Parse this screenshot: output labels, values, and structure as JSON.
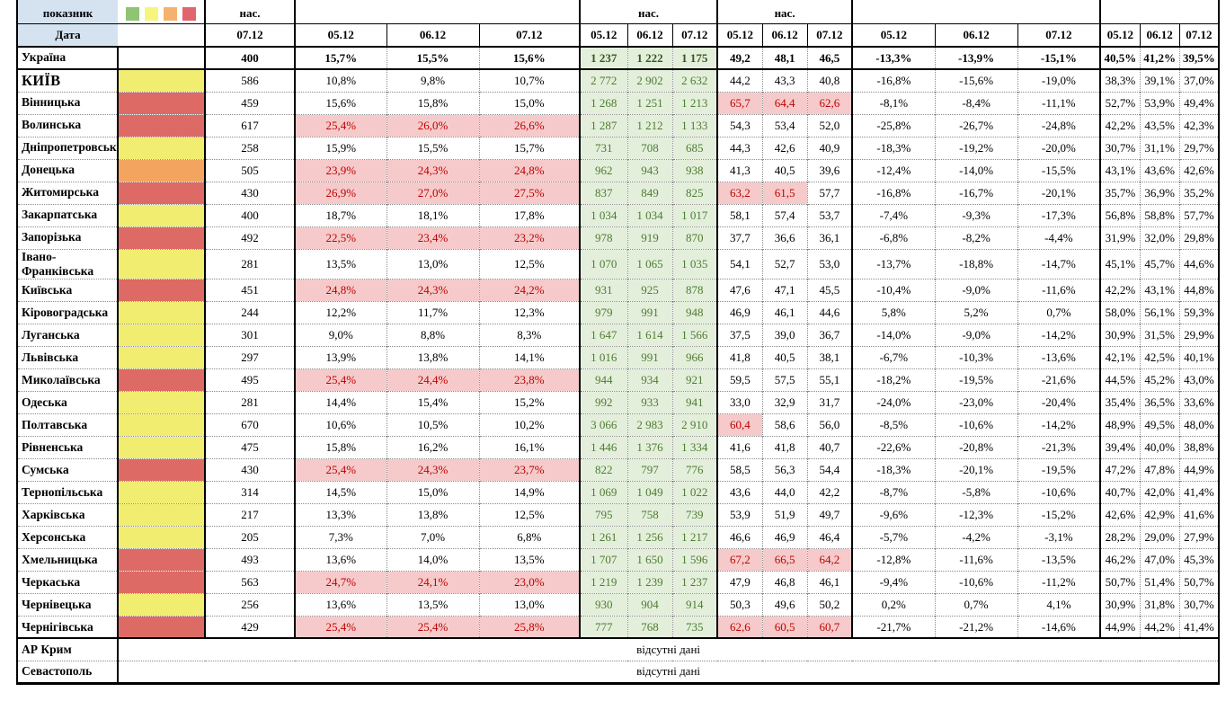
{
  "header": {
    "indicator_label": "показник",
    "date_label": "Дата",
    "nas_label": "нас.",
    "single_date": "07.12",
    "dates": [
      "05.12",
      "06.12",
      "07.12"
    ],
    "legend_colors": [
      "#8FC474",
      "#F6F57E",
      "#F5B26E",
      "#E0656E"
    ]
  },
  "colors": {
    "status": {
      "yellow": "#F1ED71",
      "orange": "#F3A55F",
      "red": "#DE6A65"
    },
    "header_blue": "#D5E3F1",
    "green_cell_bg": "#E3EFDB",
    "green_cell_text": "#4E7B31",
    "alert_bg": "#F6CACA",
    "alert_text": "#BF0000"
  },
  "summary_row": {
    "name": "Україна",
    "status": null,
    "nas": "400",
    "pct1": [
      "15,7%",
      "15,5%",
      "15,6%"
    ],
    "counts": [
      "1 237",
      "1 222",
      "1 175"
    ],
    "vals": [
      "49,2",
      "48,1",
      "46,5"
    ],
    "pct2": [
      "-13,3%",
      "-13,9%",
      "-15,1%"
    ],
    "pct3": [
      "40,5%",
      "41,2%",
      "39,5%"
    ]
  },
  "rows": [
    {
      "name": "КИЇВ",
      "emphasis": true,
      "status": "yellow",
      "nas": "586",
      "pct1": [
        "10,8%",
        "9,8%",
        "10,7%"
      ],
      "counts": [
        "2 772",
        "2 902",
        "2 632"
      ],
      "vals": [
        "44,2",
        "43,3",
        "40,8"
      ],
      "pct2": [
        "-16,8%",
        "-15,6%",
        "-19,0%"
      ],
      "pct3": [
        "38,3%",
        "39,1%",
        "37,0%"
      ]
    },
    {
      "name": "Вінницька",
      "status": "red",
      "nas": "459",
      "pct1": [
        "15,6%",
        "15,8%",
        "15,0%"
      ],
      "counts": [
        "1 268",
        "1 251",
        "1 213"
      ],
      "vals": [
        "65,7",
        "64,4",
        "62,6"
      ],
      "vals_alert": [
        1,
        1,
        1
      ],
      "pct2": [
        "-8,1%",
        "-8,4%",
        "-11,1%"
      ],
      "pct3": [
        "52,7%",
        "53,9%",
        "49,4%"
      ]
    },
    {
      "name": "Волинська",
      "status": "red",
      "nas": "617",
      "pct1": [
        "25,4%",
        "26,0%",
        "26,6%"
      ],
      "pct1_alert": true,
      "counts": [
        "1 287",
        "1 212",
        "1 133"
      ],
      "vals": [
        "54,3",
        "53,4",
        "52,0"
      ],
      "pct2": [
        "-25,8%",
        "-26,7%",
        "-24,8%"
      ],
      "pct3": [
        "42,2%",
        "43,5%",
        "42,3%"
      ]
    },
    {
      "name": "Дніпропетровська",
      "status": "yellow",
      "nas": "258",
      "pct1": [
        "15,9%",
        "15,5%",
        "15,7%"
      ],
      "counts": [
        "731",
        "708",
        "685"
      ],
      "vals": [
        "44,3",
        "42,6",
        "40,9"
      ],
      "pct2": [
        "-18,3%",
        "-19,2%",
        "-20,0%"
      ],
      "pct3": [
        "30,7%",
        "31,1%",
        "29,7%"
      ]
    },
    {
      "name": "Донецька",
      "status": "orange",
      "nas": "505",
      "pct1": [
        "23,9%",
        "24,3%",
        "24,8%"
      ],
      "pct1_alert": true,
      "counts": [
        "962",
        "943",
        "938"
      ],
      "vals": [
        "41,3",
        "40,5",
        "39,6"
      ],
      "pct2": [
        "-12,4%",
        "-14,0%",
        "-15,5%"
      ],
      "pct3": [
        "43,1%",
        "43,6%",
        "42,6%"
      ]
    },
    {
      "name": "Житомирська",
      "status": "red",
      "nas": "430",
      "pct1": [
        "26,9%",
        "27,0%",
        "27,5%"
      ],
      "pct1_alert": true,
      "counts": [
        "837",
        "849",
        "825"
      ],
      "vals": [
        "63,2",
        "61,5",
        "57,7"
      ],
      "vals_alert": [
        1,
        1,
        0
      ],
      "pct2": [
        "-16,8%",
        "-16,7%",
        "-20,1%"
      ],
      "pct3": [
        "35,7%",
        "36,9%",
        "35,2%"
      ]
    },
    {
      "name": "Закарпатська",
      "status": "yellow",
      "nas": "400",
      "pct1": [
        "18,7%",
        "18,1%",
        "17,8%"
      ],
      "counts": [
        "1 034",
        "1 034",
        "1 017"
      ],
      "vals": [
        "58,1",
        "57,4",
        "53,7"
      ],
      "pct2": [
        "-7,4%",
        "-9,3%",
        "-17,3%"
      ],
      "pct3": [
        "56,8%",
        "58,8%",
        "57,7%"
      ]
    },
    {
      "name": "Запорізька",
      "status": "red",
      "nas": "492",
      "pct1": [
        "22,5%",
        "23,4%",
        "23,2%"
      ],
      "pct1_alert": true,
      "counts": [
        "978",
        "919",
        "870"
      ],
      "vals": [
        "37,7",
        "36,6",
        "36,1"
      ],
      "pct2": [
        "-6,8%",
        "-8,2%",
        "-4,4%"
      ],
      "pct3": [
        "31,9%",
        "32,0%",
        "29,8%"
      ]
    },
    {
      "name": "Івано-Франківська",
      "status": "yellow",
      "nas": "281",
      "pct1": [
        "13,5%",
        "13,0%",
        "12,5%"
      ],
      "counts": [
        "1 070",
        "1 065",
        "1 035"
      ],
      "vals": [
        "54,1",
        "52,7",
        "53,0"
      ],
      "pct2": [
        "-13,7%",
        "-18,8%",
        "-14,7%"
      ],
      "pct3": [
        "45,1%",
        "45,7%",
        "44,6%"
      ]
    },
    {
      "name": "Київська",
      "status": "red",
      "nas": "451",
      "pct1": [
        "24,8%",
        "24,3%",
        "24,2%"
      ],
      "pct1_alert": true,
      "counts": [
        "931",
        "925",
        "878"
      ],
      "vals": [
        "47,6",
        "47,1",
        "45,5"
      ],
      "pct2": [
        "-10,4%",
        "-9,0%",
        "-11,6%"
      ],
      "pct3": [
        "42,2%",
        "43,1%",
        "44,8%"
      ]
    },
    {
      "name": "Кіровоградська",
      "status": "yellow",
      "nas": "244",
      "pct1": [
        "12,2%",
        "11,7%",
        "12,3%"
      ],
      "counts": [
        "979",
        "991",
        "948"
      ],
      "vals": [
        "46,9",
        "46,1",
        "44,6"
      ],
      "pct2": [
        "5,8%",
        "5,2%",
        "0,7%"
      ],
      "pct3": [
        "58,0%",
        "56,1%",
        "59,3%"
      ]
    },
    {
      "name": "Луганська",
      "status": "yellow",
      "nas": "301",
      "pct1": [
        "9,0%",
        "8,8%",
        "8,3%"
      ],
      "counts": [
        "1 647",
        "1 614",
        "1 566"
      ],
      "vals": [
        "37,5",
        "39,0",
        "36,7"
      ],
      "pct2": [
        "-14,0%",
        "-9,0%",
        "-14,2%"
      ],
      "pct3": [
        "30,9%",
        "31,5%",
        "29,9%"
      ]
    },
    {
      "name": "Львівська",
      "status": "yellow",
      "nas": "297",
      "pct1": [
        "13,9%",
        "13,8%",
        "14,1%"
      ],
      "counts": [
        "1 016",
        "991",
        "966"
      ],
      "vals": [
        "41,8",
        "40,5",
        "38,1"
      ],
      "pct2": [
        "-6,7%",
        "-10,3%",
        "-13,6%"
      ],
      "pct3": [
        "42,1%",
        "42,5%",
        "40,1%"
      ]
    },
    {
      "name": "Миколаївська",
      "status": "red",
      "nas": "495",
      "pct1": [
        "25,4%",
        "24,4%",
        "23,8%"
      ],
      "pct1_alert": true,
      "counts": [
        "944",
        "934",
        "921"
      ],
      "vals": [
        "59,5",
        "57,5",
        "55,1"
      ],
      "pct2": [
        "-18,2%",
        "-19,5%",
        "-21,6%"
      ],
      "pct3": [
        "44,5%",
        "45,2%",
        "43,0%"
      ]
    },
    {
      "name": "Одеська",
      "status": "yellow",
      "nas": "281",
      "pct1": [
        "14,4%",
        "15,4%",
        "15,2%"
      ],
      "counts": [
        "992",
        "933",
        "941"
      ],
      "vals": [
        "33,0",
        "32,9",
        "31,7"
      ],
      "pct2": [
        "-24,0%",
        "-23,0%",
        "-20,4%"
      ],
      "pct3": [
        "35,4%",
        "36,5%",
        "33,6%"
      ]
    },
    {
      "name": "Полтавська",
      "status": "yellow",
      "nas": "670",
      "pct1": [
        "10,6%",
        "10,5%",
        "10,2%"
      ],
      "counts": [
        "3 066",
        "2 983",
        "2 910"
      ],
      "vals": [
        "60,4",
        "58,6",
        "56,0"
      ],
      "vals_alert": [
        1,
        0,
        0
      ],
      "pct2": [
        "-8,5%",
        "-10,6%",
        "-14,2%"
      ],
      "pct3": [
        "48,9%",
        "49,5%",
        "48,0%"
      ]
    },
    {
      "name": "Рівненська",
      "status": "yellow",
      "nas": "475",
      "pct1": [
        "15,8%",
        "16,2%",
        "16,1%"
      ],
      "counts": [
        "1 446",
        "1 376",
        "1 334"
      ],
      "vals": [
        "41,6",
        "41,8",
        "40,7"
      ],
      "pct2": [
        "-22,6%",
        "-20,8%",
        "-21,3%"
      ],
      "pct3": [
        "39,4%",
        "40,0%",
        "38,8%"
      ]
    },
    {
      "name": "Сумська",
      "status": "red",
      "nas": "430",
      "pct1": [
        "25,4%",
        "24,3%",
        "23,7%"
      ],
      "pct1_alert": true,
      "counts": [
        "822",
        "797",
        "776"
      ],
      "vals": [
        "58,5",
        "56,3",
        "54,4"
      ],
      "pct2": [
        "-18,3%",
        "-20,1%",
        "-19,5%"
      ],
      "pct3": [
        "47,2%",
        "47,8%",
        "44,9%"
      ]
    },
    {
      "name": "Тернопільська",
      "status": "yellow",
      "nas": "314",
      "pct1": [
        "14,5%",
        "15,0%",
        "14,9%"
      ],
      "counts": [
        "1 069",
        "1 049",
        "1 022"
      ],
      "vals": [
        "43,6",
        "44,0",
        "42,2"
      ],
      "pct2": [
        "-8,7%",
        "-5,8%",
        "-10,6%"
      ],
      "pct3": [
        "40,7%",
        "42,0%",
        "41,4%"
      ]
    },
    {
      "name": "Харківська",
      "status": "yellow",
      "nas": "217",
      "pct1": [
        "13,3%",
        "13,8%",
        "12,5%"
      ],
      "counts": [
        "795",
        "758",
        "739"
      ],
      "vals": [
        "53,9",
        "51,9",
        "49,7"
      ],
      "pct2": [
        "-9,6%",
        "-12,3%",
        "-15,2%"
      ],
      "pct3": [
        "42,6%",
        "42,9%",
        "41,6%"
      ]
    },
    {
      "name": "Херсонська",
      "status": "yellow",
      "nas": "205",
      "pct1": [
        "7,3%",
        "7,0%",
        "6,8%"
      ],
      "counts": [
        "1 261",
        "1 256",
        "1 217"
      ],
      "vals": [
        "46,6",
        "46,9",
        "46,4"
      ],
      "pct2": [
        "-5,7%",
        "-4,2%",
        "-3,1%"
      ],
      "pct3": [
        "28,2%",
        "29,0%",
        "27,9%"
      ]
    },
    {
      "name": "Хмельницька",
      "status": "red",
      "nas": "493",
      "pct1": [
        "13,6%",
        "14,0%",
        "13,5%"
      ],
      "counts": [
        "1 707",
        "1 650",
        "1 596"
      ],
      "vals": [
        "67,2",
        "66,5",
        "64,2"
      ],
      "vals_alert": [
        1,
        1,
        1
      ],
      "pct2": [
        "-12,8%",
        "-11,6%",
        "-13,5%"
      ],
      "pct3": [
        "46,2%",
        "47,0%",
        "45,3%"
      ]
    },
    {
      "name": "Черкаська",
      "status": "red",
      "nas": "563",
      "pct1": [
        "24,7%",
        "24,1%",
        "23,0%"
      ],
      "pct1_alert": true,
      "counts": [
        "1 219",
        "1 239",
        "1 237"
      ],
      "vals": [
        "47,9",
        "46,8",
        "46,1"
      ],
      "pct2": [
        "-9,4%",
        "-10,6%",
        "-11,2%"
      ],
      "pct3": [
        "50,7%",
        "51,4%",
        "50,7%"
      ]
    },
    {
      "name": "Чернівецька",
      "status": "yellow",
      "nas": "256",
      "pct1": [
        "13,6%",
        "13,5%",
        "13,0%"
      ],
      "counts": [
        "930",
        "904",
        "914"
      ],
      "vals": [
        "50,3",
        "49,6",
        "50,2"
      ],
      "pct2": [
        "0,2%",
        "0,7%",
        "4,1%"
      ],
      "pct3": [
        "30,9%",
        "31,8%",
        "30,7%"
      ]
    },
    {
      "name": "Чернігівська",
      "status": "red",
      "nas": "429",
      "pct1": [
        "25,4%",
        "25,4%",
        "25,8%"
      ],
      "pct1_alert": true,
      "counts": [
        "777",
        "768",
        "735"
      ],
      "vals": [
        "62,6",
        "60,5",
        "60,7"
      ],
      "vals_alert": [
        1,
        1,
        1
      ],
      "pct2": [
        "-21,7%",
        "-21,2%",
        "-14,6%"
      ],
      "pct3": [
        "44,9%",
        "44,2%",
        "41,4%"
      ]
    }
  ],
  "missing_rows": [
    {
      "name": "АР Крим",
      "text": "відсутні дані"
    },
    {
      "name": "Севастополь",
      "text": "відсутні дані"
    }
  ]
}
